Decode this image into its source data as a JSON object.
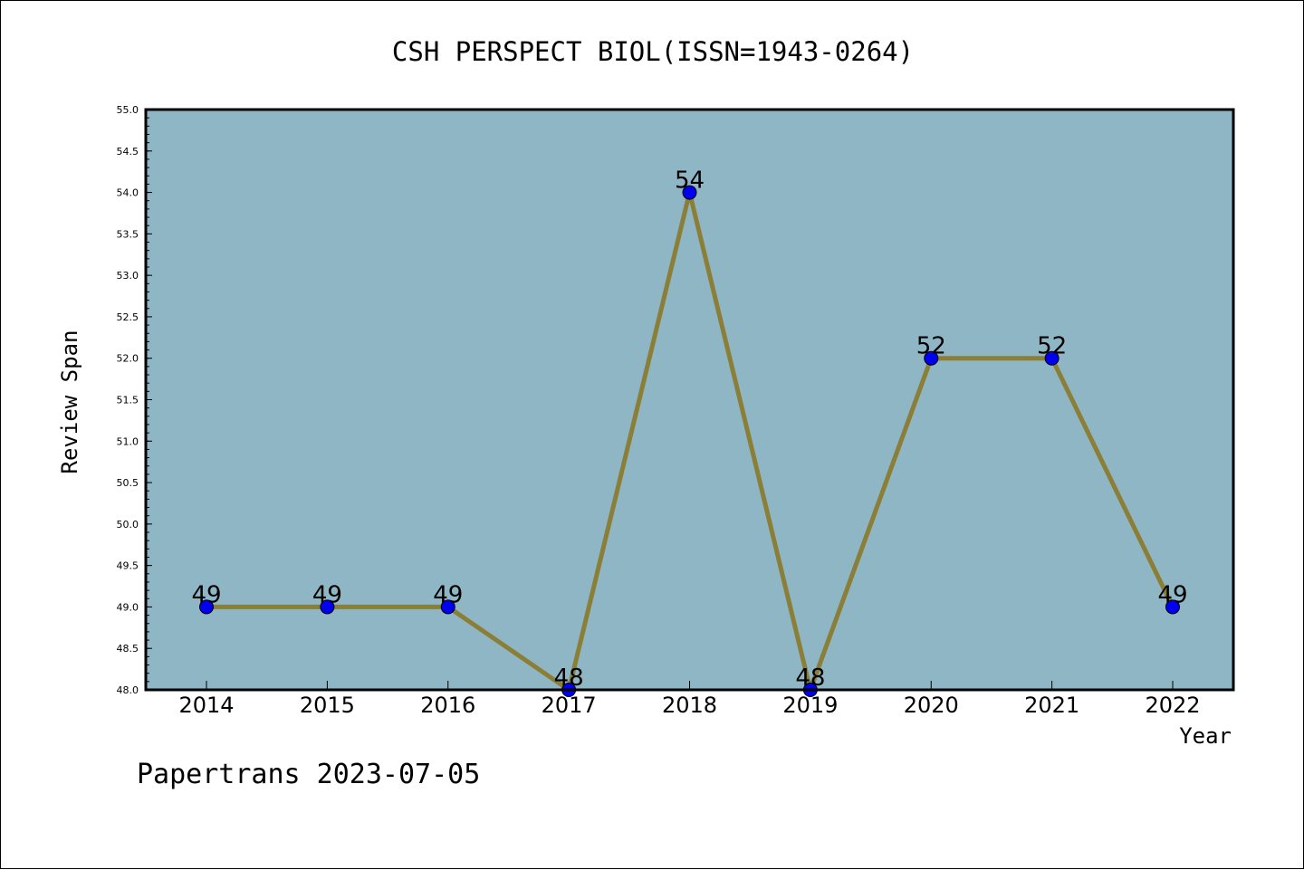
{
  "footer": {
    "text": "Papertrans 2023-07-05"
  },
  "chart_data": {
    "type": "line",
    "title": "CSH PERSPECT BIOL(ISSN=1943-0264)",
    "xlabel": "Year",
    "ylabel": "Review Span",
    "categories": [
      "2014",
      "2015",
      "2016",
      "2017",
      "2018",
      "2019",
      "2020",
      "2021",
      "2022"
    ],
    "series": [
      {
        "values": [
          49,
          49,
          49,
          48,
          54,
          48,
          52,
          52,
          49
        ]
      }
    ],
    "ylim": [
      48.0,
      55.0
    ],
    "yticks": [
      "48.0",
      "48.5",
      "49.0",
      "49.5",
      "50.0",
      "50.5",
      "51.0",
      "51.5",
      "52.0",
      "52.5",
      "53.0",
      "53.5",
      "54.0",
      "54.5",
      "55.0"
    ],
    "data_labels": [
      "49",
      "49",
      "49",
      "48",
      "54",
      "48",
      "52",
      "52",
      "49"
    ],
    "grid": false,
    "legend": "none",
    "colors": {
      "plot_background": "#8fb6c4",
      "line": "#8b7e36",
      "marker": "#0000ee"
    }
  }
}
